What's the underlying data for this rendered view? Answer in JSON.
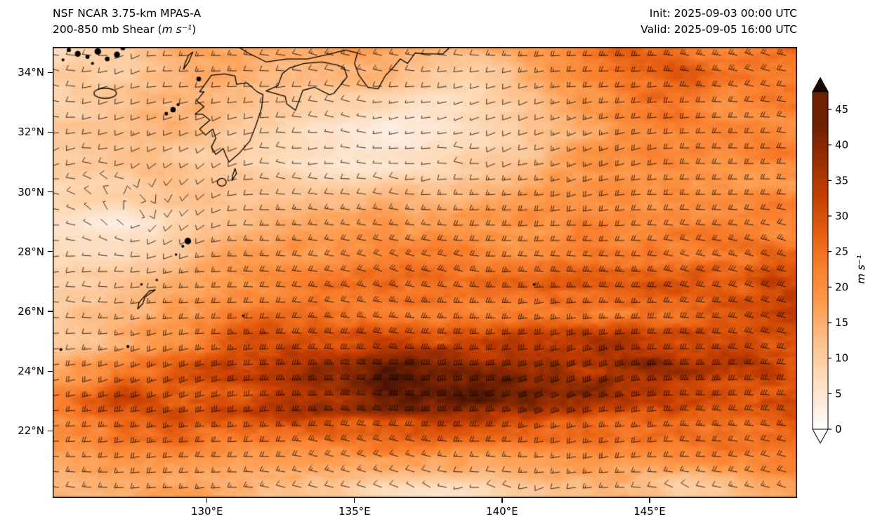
{
  "header": {
    "title": "NSF NCAR 3.75-km MPAS-A",
    "subtitle_prefix": "200-850 mb Shear (",
    "subtitle_unit": "m s⁻¹",
    "subtitle_suffix": ")",
    "init_label": "Init: 2025-09-03 00:00 UTC",
    "valid_label": "Valid: 2025-09-05 16:00 UTC"
  },
  "axes": {
    "x_ticks": [
      {
        "value": 130,
        "label": "130°E"
      },
      {
        "value": 135,
        "label": "135°E"
      },
      {
        "value": 140,
        "label": "140°E"
      },
      {
        "value": 145,
        "label": "145°E"
      }
    ],
    "y_ticks": [
      {
        "value": 34,
        "label": "34°N"
      },
      {
        "value": 32,
        "label": "32°N"
      },
      {
        "value": 30,
        "label": "30°N"
      },
      {
        "value": 28,
        "label": "28°N"
      },
      {
        "value": 26,
        "label": "26°N"
      },
      {
        "value": 24,
        "label": "24°N"
      },
      {
        "value": 22,
        "label": "22°N"
      }
    ]
  },
  "colorbar": {
    "ticks": [
      0,
      5,
      10,
      15,
      20,
      25,
      30,
      35,
      40,
      45
    ],
    "label": "m s⁻¹",
    "extend": "both",
    "vmin": 0,
    "vmax": 45
  },
  "map": {
    "lon_range": [
      124.77,
      150.0
    ],
    "lat_range": [
      19.75,
      34.85
    ],
    "coastlines": [
      {
        "name": "honshu-coast",
        "closed": false,
        "points": [
          [
            130.9,
            34.95
          ],
          [
            131.4,
            34.65
          ],
          [
            132.0,
            34.35
          ],
          [
            132.7,
            34.45
          ],
          [
            133.4,
            34.45
          ],
          [
            134.1,
            34.6
          ],
          [
            134.7,
            34.75
          ],
          [
            135.1,
            34.65
          ],
          [
            135.0,
            34.3
          ],
          [
            135.15,
            33.9
          ],
          [
            135.45,
            33.5
          ],
          [
            135.8,
            33.45
          ],
          [
            136.05,
            33.9
          ],
          [
            136.3,
            34.15
          ],
          [
            136.55,
            34.45
          ],
          [
            136.8,
            34.3
          ],
          [
            137.05,
            34.65
          ],
          [
            137.4,
            34.62
          ],
          [
            138.0,
            34.62
          ],
          [
            138.35,
            34.95
          ]
        ]
      },
      {
        "name": "shikoku",
        "closed": true,
        "points": [
          [
            132.0,
            33.38
          ],
          [
            132.4,
            33.55
          ],
          [
            132.55,
            33.95
          ],
          [
            132.8,
            34.15
          ],
          [
            133.3,
            34.3
          ],
          [
            133.9,
            34.35
          ],
          [
            134.4,
            34.25
          ],
          [
            134.65,
            34.15
          ],
          [
            134.75,
            33.85
          ],
          [
            134.3,
            33.3
          ],
          [
            134.15,
            33.25
          ],
          [
            133.65,
            33.5
          ],
          [
            133.25,
            33.4
          ],
          [
            133.0,
            32.73
          ],
          [
            132.7,
            32.95
          ],
          [
            132.65,
            33.2
          ]
        ]
      },
      {
        "name": "kyushu",
        "closed": true,
        "points": [
          [
            130.15,
            33.9
          ],
          [
            130.6,
            33.95
          ],
          [
            130.95,
            33.88
          ],
          [
            131.0,
            33.6
          ],
          [
            131.35,
            33.65
          ],
          [
            131.7,
            33.35
          ],
          [
            131.9,
            33.25
          ],
          [
            131.85,
            32.8
          ],
          [
            131.65,
            32.2
          ],
          [
            131.45,
            31.7
          ],
          [
            131.1,
            31.3
          ],
          [
            130.75,
            31.0
          ],
          [
            130.65,
            31.2
          ],
          [
            130.55,
            31.45
          ],
          [
            130.3,
            31.25
          ],
          [
            130.15,
            31.5
          ],
          [
            130.3,
            31.8
          ],
          [
            130.2,
            32.1
          ],
          [
            129.95,
            31.9
          ],
          [
            129.75,
            32.1
          ],
          [
            130.1,
            32.4
          ],
          [
            129.85,
            32.6
          ],
          [
            129.6,
            32.6
          ],
          [
            129.9,
            32.85
          ],
          [
            129.65,
            33.05
          ],
          [
            129.9,
            33.35
          ],
          [
            129.75,
            33.35
          ]
        ]
      },
      {
        "name": "tsushima",
        "closed": true,
        "points": [
          [
            129.2,
            34.1
          ],
          [
            129.38,
            34.35
          ],
          [
            129.52,
            34.68
          ],
          [
            129.38,
            34.58
          ],
          [
            129.26,
            34.32
          ]
        ]
      },
      {
        "name": "okinawa",
        "closed": true,
        "points": [
          [
            127.65,
            26.08
          ],
          [
            127.82,
            26.25
          ],
          [
            127.9,
            26.48
          ],
          [
            128.25,
            26.72
          ],
          [
            128.05,
            26.68
          ],
          [
            127.86,
            26.48
          ],
          [
            127.7,
            26.3
          ]
        ]
      },
      {
        "name": "tanegashima",
        "closed": true,
        "points": [
          [
            130.85,
            30.38
          ],
          [
            131.0,
            30.62
          ],
          [
            130.95,
            30.78
          ],
          [
            130.87,
            30.55
          ]
        ]
      }
    ],
    "island_rings": [
      {
        "name": "jeju",
        "lon": 126.55,
        "lat": 33.3,
        "rx": 0.38,
        "ry": 0.17
      },
      {
        "name": "yakushima",
        "lon": 130.5,
        "lat": 30.32,
        "rx": 0.15,
        "ry": 0.13
      }
    ],
    "island_dots": [
      [
        125.32,
        34.75,
        0.07
      ],
      [
        125.62,
        34.62,
        0.1
      ],
      [
        125.95,
        34.52,
        0.07
      ],
      [
        126.3,
        34.7,
        0.11
      ],
      [
        126.62,
        34.45,
        0.08
      ],
      [
        126.95,
        34.6,
        0.1
      ],
      [
        127.15,
        34.82,
        0.08
      ],
      [
        126.12,
        34.3,
        0.05
      ],
      [
        125.12,
        34.42,
        0.05
      ],
      [
        129.72,
        33.78,
        0.08
      ],
      [
        128.85,
        32.75,
        0.09
      ],
      [
        128.62,
        32.62,
        0.06
      ],
      [
        129.02,
        32.92,
        0.05
      ],
      [
        129.35,
        28.35,
        0.11
      ],
      [
        129.18,
        28.18,
        0.05
      ],
      [
        128.95,
        27.9,
        0.04
      ],
      [
        127.32,
        24.82,
        0.05
      ],
      [
        125.05,
        24.72,
        0.05
      ],
      [
        131.22,
        25.85,
        0.04
      ],
      [
        141.08,
        26.9,
        0.04
      ],
      [
        128.3,
        27.05,
        0.04
      ],
      [
        127.78,
        26.9,
        0.04
      ]
    ]
  },
  "chart_data": {
    "type": "heatmap",
    "title": "200-850 mb Shear (m s⁻¹)",
    "units": "m s⁻¹",
    "overlay": "wind barbs, predominantly westerly; calm circles near 127.5E 29N",
    "vmin": 0,
    "vmax": 45,
    "lons": [
      125,
      126,
      127,
      128,
      129,
      130,
      131,
      132,
      133,
      134,
      135,
      136,
      137,
      138,
      139,
      140,
      141,
      142,
      143,
      144,
      145,
      146,
      147,
      148,
      149,
      150
    ],
    "lats": [
      35,
      34,
      33,
      32,
      31,
      30,
      29,
      28,
      27,
      26,
      25,
      24,
      23,
      22,
      21,
      20
    ],
    "values": [
      [
        8,
        9,
        10,
        12,
        14,
        15,
        15,
        14,
        14,
        15,
        16,
        16,
        15,
        14,
        15,
        17,
        19,
        22,
        26,
        30,
        27,
        25,
        24,
        24,
        24,
        25
      ],
      [
        9,
        10,
        11,
        12,
        13,
        14,
        14,
        13,
        12,
        13,
        14,
        15,
        12,
        9,
        8,
        10,
        14,
        17,
        20,
        22,
        24,
        26,
        25,
        24,
        23,
        23
      ],
      [
        10,
        11,
        12,
        13,
        13,
        13,
        12,
        11,
        10,
        9,
        8,
        7,
        6,
        6,
        7,
        9,
        12,
        15,
        18,
        20,
        22,
        23,
        23,
        22,
        22,
        22
      ],
      [
        11,
        12,
        13,
        14,
        13,
        12,
        10,
        9,
        8,
        7,
        5,
        4,
        4,
        5,
        7,
        9,
        12,
        14,
        16,
        18,
        20,
        21,
        21,
        21,
        21,
        21
      ],
      [
        10,
        11,
        12,
        13,
        12,
        11,
        10,
        8,
        7,
        6,
        5,
        5,
        6,
        7,
        9,
        11,
        13,
        15,
        17,
        18,
        19,
        20,
        20,
        20,
        20,
        20
      ],
      [
        8,
        9,
        10,
        11,
        12,
        12,
        12,
        12,
        12,
        12,
        12,
        13,
        13,
        14,
        15,
        16,
        17,
        18,
        18,
        19,
        19,
        20,
        20,
        20,
        20,
        20
      ],
      [
        6,
        4,
        3,
        5,
        8,
        11,
        13,
        14,
        15,
        15,
        15,
        16,
        16,
        17,
        18,
        18,
        19,
        19,
        20,
        20,
        20,
        21,
        21,
        21,
        21,
        22
      ],
      [
        8,
        7,
        6,
        8,
        11,
        14,
        16,
        17,
        18,
        18,
        19,
        19,
        20,
        20,
        20,
        21,
        21,
        22,
        22,
        22,
        23,
        23,
        24,
        24,
        25,
        26
      ],
      [
        10,
        10,
        11,
        13,
        15,
        17,
        19,
        21,
        23,
        24,
        25,
        26,
        26,
        26,
        26,
        26,
        27,
        27,
        27,
        28,
        28,
        29,
        30,
        30,
        31,
        32
      ],
      [
        12,
        13,
        14,
        15,
        17,
        19,
        21,
        22,
        23,
        23,
        23,
        24,
        24,
        24,
        24,
        24,
        25,
        25,
        26,
        26,
        27,
        27,
        28,
        28,
        29,
        30
      ],
      [
        12,
        13,
        15,
        18,
        20,
        23,
        26,
        28,
        29,
        30,
        31,
        32,
        33,
        33,
        33,
        32,
        32,
        32,
        33,
        33,
        33,
        32,
        32,
        31,
        31,
        31
      ],
      [
        18,
        20,
        23,
        26,
        28,
        30,
        32,
        34,
        36,
        38,
        40,
        42,
        43,
        44,
        43,
        42,
        41,
        40,
        40,
        39,
        38,
        36,
        35,
        34,
        34,
        34
      ],
      [
        22,
        26,
        30,
        32,
        30,
        30,
        31,
        33,
        35,
        37,
        38,
        40,
        41,
        41,
        40,
        39,
        38,
        37,
        36,
        35,
        34,
        33,
        32,
        31,
        31,
        31
      ],
      [
        20,
        22,
        25,
        26,
        25,
        24,
        24,
        25,
        26,
        27,
        27,
        28,
        28,
        28,
        27,
        27,
        26,
        26,
        26,
        25,
        25,
        25,
        24,
        24,
        24,
        25
      ],
      [
        15,
        16,
        18,
        19,
        19,
        18,
        18,
        18,
        18,
        18,
        18,
        17,
        16,
        15,
        15,
        15,
        16,
        17,
        18,
        18,
        19,
        19,
        20,
        20,
        21,
        21
      ],
      [
        13,
        14,
        15,
        16,
        16,
        16,
        15,
        14,
        13,
        12,
        10,
        8,
        7,
        6,
        7,
        9,
        11,
        13,
        14,
        15,
        13,
        10,
        12,
        14,
        15,
        16
      ]
    ],
    "colormap": [
      [
        0,
        "#ffffff"
      ],
      [
        4,
        "#fdeada"
      ],
      [
        8,
        "#fdd8b3"
      ],
      [
        13,
        "#fdbc84"
      ],
      [
        18,
        "#fd9a4c"
      ],
      [
        23,
        "#f97d2c"
      ],
      [
        28,
        "#e45c0f"
      ],
      [
        33,
        "#c33d02"
      ],
      [
        38,
        "#972e02"
      ],
      [
        43,
        "#6e2003"
      ],
      [
        48,
        "#3c1002"
      ],
      [
        53,
        "#190601"
      ]
    ]
  }
}
